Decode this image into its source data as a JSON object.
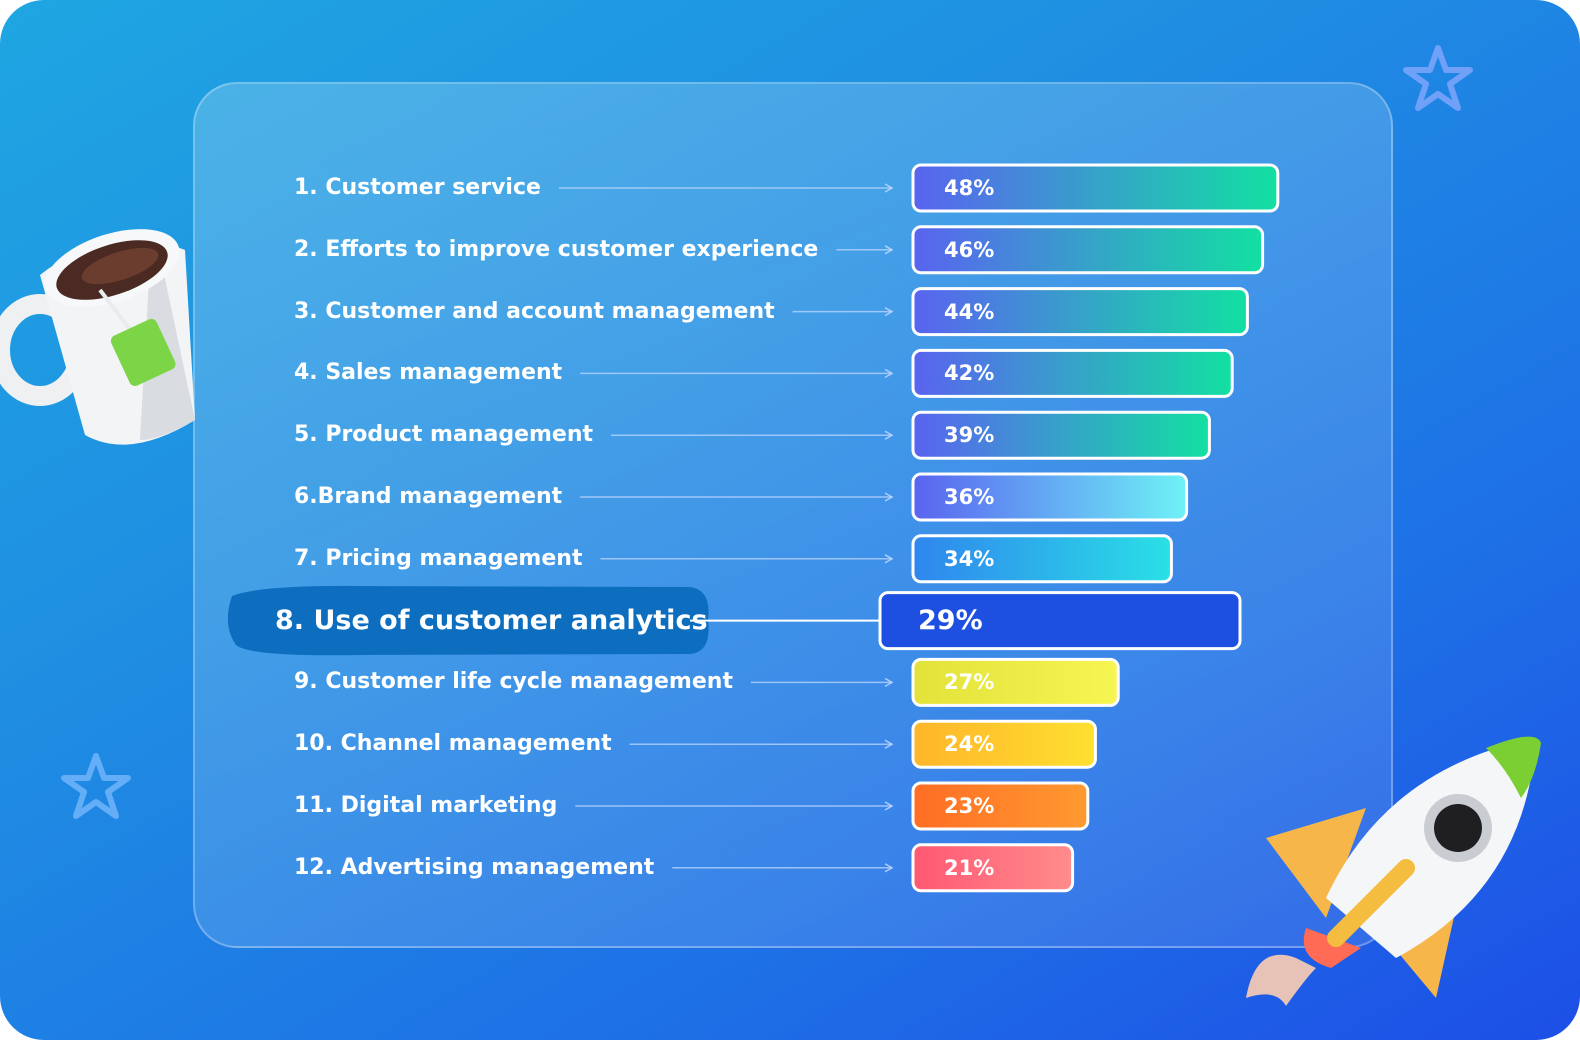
{
  "chart_data": {
    "type": "bar",
    "orientation": "horizontal",
    "title": "",
    "xlim": [
      0,
      48
    ],
    "categories": [
      "1. Customer service",
      "2. Efforts to improve customer experience",
      "3. Customer and account management",
      "4. Sales management",
      "5. Product management",
      "6.Brand management",
      "7. Pricing management",
      "8. Use of customer analytics",
      "9. Customer life cycle management",
      "10. Channel management",
      "11. Digital marketing",
      "12. Advertising management"
    ],
    "values": [
      48,
      46,
      44,
      42,
      39,
      36,
      34,
      29,
      27,
      24,
      23,
      21
    ],
    "value_labels": [
      "48%",
      "46%",
      "44%",
      "42%",
      "39%",
      "36%",
      "34%",
      "29%",
      "27%",
      "24%",
      "23%",
      "21%"
    ],
    "highlight_index": 7,
    "bar_colors": [
      [
        "#5a63f0",
        "#12e0a2"
      ],
      [
        "#5a63f0",
        "#12e0a2"
      ],
      [
        "#5a63f0",
        "#12e0a2"
      ],
      [
        "#5a63f0",
        "#12e0a2"
      ],
      [
        "#5a63f0",
        "#12e0a2"
      ],
      [
        "#5a63f0",
        "#6ef2f6"
      ],
      [
        "#2f86ee",
        "#2ae0e6"
      ],
      [
        "#1d4fe0",
        "#1d4fe0"
      ],
      [
        "#e3e23a",
        "#f6f552"
      ],
      [
        "#ffb52a",
        "#ffe030"
      ],
      [
        "#ff6d24",
        "#ff9a30"
      ],
      [
        "#ff5872",
        "#ff8c8c"
      ]
    ]
  },
  "colors": {
    "highlight_marker": "#0d6ec0",
    "bar_border": "#ffffff"
  }
}
